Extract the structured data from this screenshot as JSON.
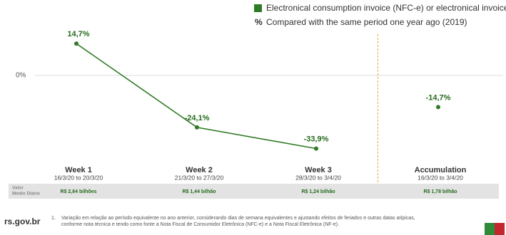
{
  "chart_data": {
    "type": "line",
    "legend": [
      {
        "symbol": "square",
        "label": "Electronical consumption  invoice (NFC-e) or electronical invoice (NF-e)"
      },
      {
        "symbol": "%",
        "label": "Compared with the same period one year ago (2019)"
      }
    ],
    "categories": [
      "Week 1",
      "Week 2",
      "Week 3",
      "Accumulation"
    ],
    "category_dates": [
      "16/3/20 to 20/3/20",
      "21/3/20 to 27/3/20",
      "28/3/20 to 3/4/20",
      "16/3/20 to 3/4/20"
    ],
    "series": [
      {
        "color": "#2f7a24",
        "values": [
          14.7,
          -24.1,
          -33.9,
          -14.7
        ],
        "value_labels": [
          "14,7%",
          "-24,1%",
          "-33,9%",
          "-14,7%"
        ]
      }
    ],
    "separator_before": "Accumulation",
    "separator_color": "#e8a53c",
    "ylim": [
      -36,
      25
    ],
    "yticks": [
      {
        "value": 0,
        "label": "0%"
      }
    ],
    "grid": true,
    "table": {
      "label": [
        "Valor",
        "Médio Diário"
      ],
      "cells": [
        "R$ 2,64 bilhões",
        "R$ 1,44 bilhão",
        "R$ 1,24 bilhão",
        "R$ 1,78 bilhão"
      ]
    }
  },
  "footnote": {
    "number": "1.",
    "text": "Variação em relação ao período equivalente no ano anterior, considerando dias de semana equivalentes e ajustando efeitos de feriados e outras datas atípicas, conforme nota técnica e tendo como fonte a Nota Fiscal de Consumidor Eletrônica (NFC-e) e a Nota Fiscal Eletrônica (NF-e)."
  },
  "footer": {
    "site": "rs.gov.br"
  }
}
